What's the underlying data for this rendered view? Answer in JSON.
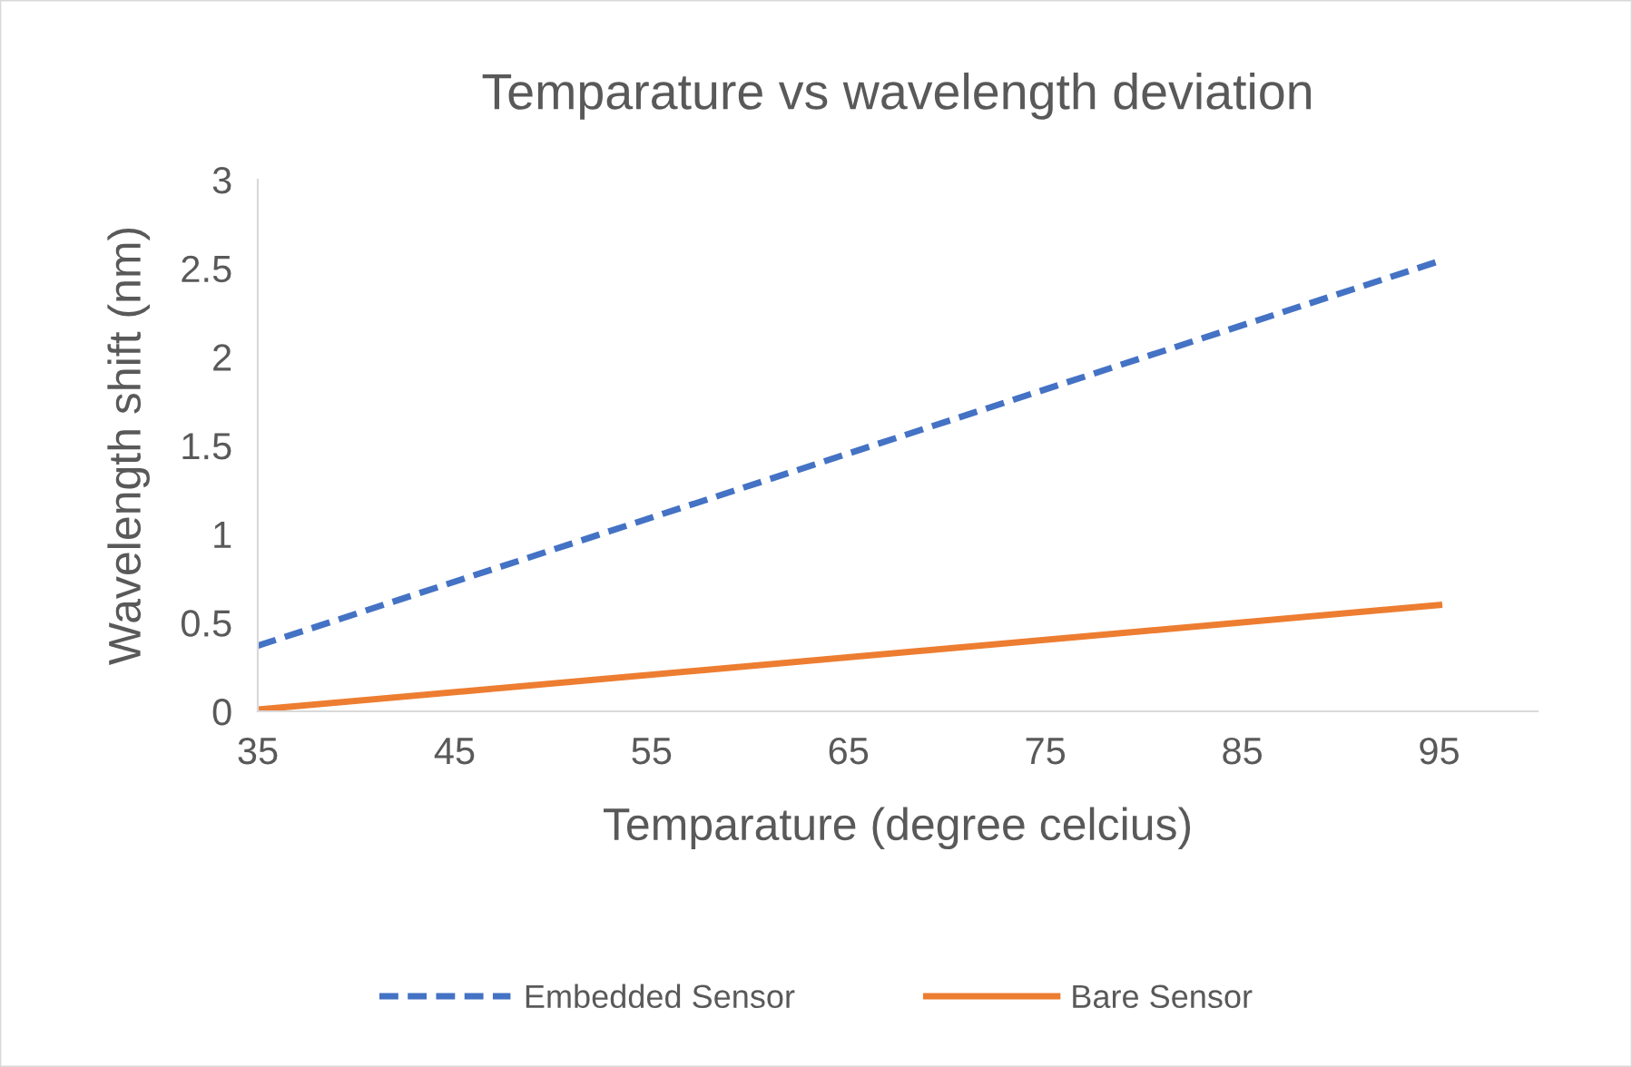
{
  "chart_data": {
    "type": "line",
    "title": "Temparature vs wavelength deviation",
    "xlabel": "Temparature (degree celcius)",
    "ylabel": "Wavelength shift (nm)",
    "x": [
      35,
      95
    ],
    "series": [
      {
        "name": "Embedded Sensor",
        "color": "#4472c4",
        "values": [
          0.37,
          2.54
        ],
        "line_style": "dashed"
      },
      {
        "name": "Bare Sensor",
        "color": "#ed7d31",
        "values": [
          0.01,
          0.6
        ],
        "line_style": "solid"
      }
    ],
    "xlim": [
      35,
      100
    ],
    "xticks": [
      35,
      45,
      55,
      65,
      75,
      85,
      95
    ],
    "ylim": [
      0,
      3
    ],
    "yticks": [
      0,
      0.5,
      1,
      1.5,
      2,
      2.5,
      3
    ],
    "grid": false,
    "legend": "bottom",
    "marker": "none"
  }
}
